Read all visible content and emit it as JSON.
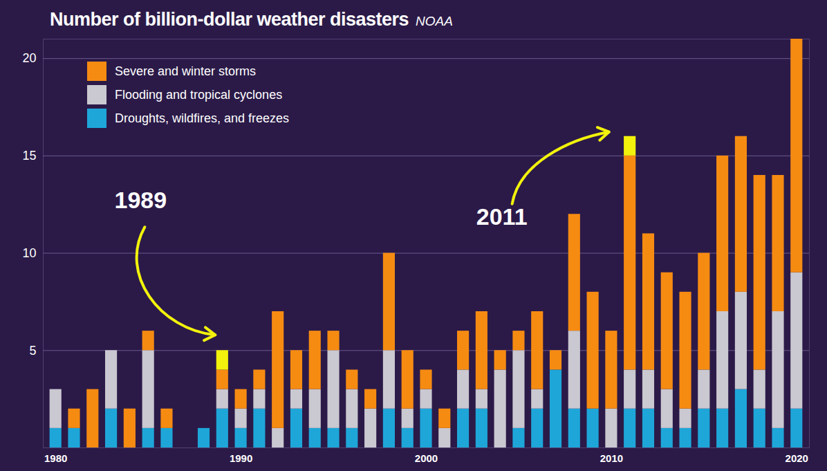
{
  "chart_data": {
    "type": "bar",
    "title": "Number of billion-dollar weather disasters",
    "subtitle": "NOAA",
    "stacked": true,
    "grid": true,
    "legend": "top-left",
    "categories": [
      1980,
      1981,
      1982,
      1983,
      1984,
      1985,
      1986,
      1987,
      1988,
      1989,
      1990,
      1991,
      1992,
      1993,
      1994,
      1995,
      1996,
      1997,
      1998,
      1999,
      2000,
      2001,
      2002,
      2003,
      2004,
      2005,
      2006,
      2007,
      2008,
      2009,
      2010,
      2011,
      2012,
      2013,
      2014,
      2015,
      2016,
      2017,
      2018,
      2019,
      2020
    ],
    "series": [
      {
        "name": "Severe and winter storms",
        "color": "#f68b12",
        "values": [
          0,
          1,
          3,
          0,
          2,
          1,
          1,
          0,
          0,
          1,
          1,
          1,
          6,
          2,
          3,
          1,
          1,
          1,
          5,
          3,
          1,
          1,
          2,
          4,
          1,
          1,
          4,
          1,
          6,
          6,
          4,
          11,
          7,
          6,
          6,
          6,
          8,
          8,
          10,
          7,
          12
        ]
      },
      {
        "name": "Flooding and tropical cyclones",
        "color": "#cac8d0",
        "values": [
          2,
          0,
          0,
          3,
          0,
          4,
          0,
          0,
          0,
          1,
          1,
          1,
          1,
          1,
          2,
          4,
          2,
          2,
          3,
          1,
          1,
          1,
          2,
          1,
          4,
          4,
          1,
          0,
          4,
          0,
          2,
          2,
          2,
          2,
          1,
          2,
          5,
          5,
          2,
          6,
          7
        ]
      },
      {
        "name": "Droughts, wildfires, and freezes",
        "color": "#1ea6d9",
        "values": [
          1,
          1,
          0,
          2,
          0,
          1,
          1,
          0,
          1,
          2,
          1,
          2,
          0,
          2,
          1,
          1,
          1,
          0,
          2,
          1,
          2,
          0,
          2,
          2,
          0,
          1,
          2,
          4,
          2,
          2,
          0,
          2,
          2,
          1,
          1,
          2,
          2,
          3,
          2,
          1,
          2
        ]
      },
      {
        "name": null,
        "color": "#f2f20c",
        "values": [
          0,
          0,
          0,
          0,
          0,
          0,
          0,
          0,
          0,
          1,
          0,
          0,
          0,
          0,
          0,
          0,
          0,
          0,
          0,
          0,
          0,
          0,
          0,
          0,
          0,
          0,
          0,
          0,
          0,
          0,
          0,
          1,
          0,
          0,
          0,
          0,
          0,
          0,
          0,
          0,
          0
        ]
      }
    ],
    "ylim": [
      0,
      21
    ],
    "yticks": [
      5,
      10,
      15,
      20
    ],
    "xticks": [
      1980,
      1990,
      2000,
      2010,
      2020
    ],
    "annotations": [
      {
        "text": "1989",
        "x": 1989
      },
      {
        "text": "2011",
        "x": 2011
      }
    ]
  }
}
